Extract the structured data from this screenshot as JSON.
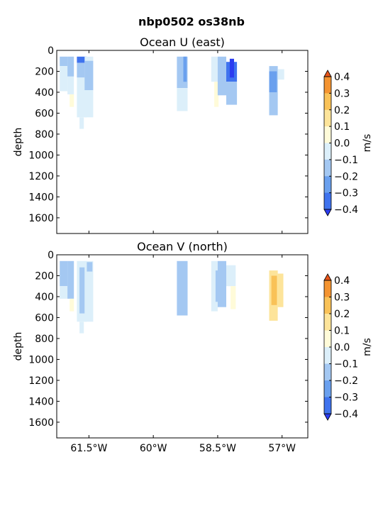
{
  "figure": {
    "title": "nbp0502 os38nb"
  },
  "colorscale": {
    "levels": [
      -0.4,
      -0.3,
      -0.2,
      -0.1,
      0.0,
      0.1,
      0.2,
      0.3,
      0.4
    ],
    "colors": [
      "#2b3cf0",
      "#3f73ee",
      "#6aa0ee",
      "#a4c8f2",
      "#dceffa",
      "#fffbd9",
      "#fde49a",
      "#f9c258",
      "#f49431",
      "#e8561a"
    ],
    "tick_labels": [
      "0.4",
      "0.3",
      "0.2",
      "0.1",
      "0.0",
      "−0.1",
      "−0.2",
      "−0.3",
      "−0.4"
    ],
    "unit_label": "m/s"
  },
  "chart_data": [
    {
      "type": "heatmap",
      "title": "Ocean U (east)",
      "ylabel": "depth",
      "xlabel": "",
      "xlim": [
        -62.25,
        -56.4
      ],
      "ylim": [
        1750,
        0
      ],
      "yticks": [
        0,
        200,
        400,
        600,
        800,
        1000,
        1200,
        1400,
        1600
      ],
      "ytick_labels": [
        "0",
        "200",
        "400",
        "600",
        "800",
        "1000",
        "1200",
        "1400",
        "1600"
      ],
      "xticks": [
        -61.5,
        -60.0,
        -58.5,
        -57.0
      ],
      "xtick_labels": [],
      "cells": [
        {
          "lon0": -62.18,
          "lon1": -62.0,
          "d0": 60,
          "d1": 150,
          "value": -0.12
        },
        {
          "lon0": -62.18,
          "lon1": -62.0,
          "d0": 150,
          "d1": 390,
          "value": -0.05
        },
        {
          "lon0": -62.0,
          "lon1": -61.85,
          "d0": 60,
          "d1": 250,
          "value": -0.15
        },
        {
          "lon0": -62.0,
          "lon1": -61.85,
          "d0": 250,
          "d1": 420,
          "value": -0.05
        },
        {
          "lon0": -61.95,
          "lon1": -61.85,
          "d0": 420,
          "d1": 540,
          "value": 0.03
        },
        {
          "lon0": -61.78,
          "lon1": -61.55,
          "d0": 60,
          "d1": 120,
          "value": -0.32
        },
        {
          "lon0": -61.78,
          "lon1": -61.55,
          "d0": 120,
          "d1": 260,
          "value": -0.18
        },
        {
          "lon0": -61.78,
          "lon1": -61.55,
          "d0": 260,
          "d1": 640,
          "value": -0.08
        },
        {
          "lon0": -61.6,
          "lon1": -61.4,
          "d0": 60,
          "d1": 640,
          "value": -0.09
        },
        {
          "lon0": -61.6,
          "lon1": -61.4,
          "d0": 100,
          "d1": 380,
          "value": -0.14
        },
        {
          "lon0": -61.72,
          "lon1": -61.62,
          "d0": 640,
          "d1": 750,
          "value": -0.06
        },
        {
          "lon0": -59.45,
          "lon1": -59.2,
          "d0": 60,
          "d1": 360,
          "value": -0.13
        },
        {
          "lon0": -59.45,
          "lon1": -59.2,
          "d0": 360,
          "d1": 580,
          "value": -0.08
        },
        {
          "lon0": -59.3,
          "lon1": -59.22,
          "d0": 60,
          "d1": 300,
          "value": -0.25
        },
        {
          "lon0": -58.65,
          "lon1": -58.5,
          "d0": 60,
          "d1": 300,
          "value": -0.05
        },
        {
          "lon0": -58.58,
          "lon1": -58.48,
          "d0": 300,
          "d1": 540,
          "value": 0.04
        },
        {
          "lon0": -58.5,
          "lon1": -58.3,
          "d0": 60,
          "d1": 430,
          "value": -0.15
        },
        {
          "lon0": -58.3,
          "lon1": -58.05,
          "d0": 110,
          "d1": 300,
          "value": -0.33
        },
        {
          "lon0": -58.22,
          "lon1": -58.12,
          "d0": 80,
          "d1": 260,
          "value": -0.42
        },
        {
          "lon0": -58.3,
          "lon1": -58.05,
          "d0": 300,
          "d1": 520,
          "value": -0.12
        },
        {
          "lon0": -57.3,
          "lon1": -57.1,
          "d0": 150,
          "d1": 620,
          "value": -0.14
        },
        {
          "lon0": -57.3,
          "lon1": -57.12,
          "d0": 200,
          "d1": 400,
          "value": -0.22
        },
        {
          "lon0": -57.1,
          "lon1": -56.95,
          "d0": 180,
          "d1": 280,
          "value": -0.04
        }
      ]
    },
    {
      "type": "heatmap",
      "title": "Ocean V (north)",
      "ylabel": "depth",
      "xlabel": "",
      "xlim": [
        -62.25,
        -56.4
      ],
      "ylim": [
        1750,
        0
      ],
      "yticks": [
        0,
        200,
        400,
        600,
        800,
        1000,
        1200,
        1400,
        1600
      ],
      "ytick_labels": [
        "0",
        "200",
        "400",
        "600",
        "800",
        "1000",
        "1200",
        "1400",
        "1600"
      ],
      "xticks": [
        -61.5,
        -60.0,
        -58.5,
        -57.0
      ],
      "xtick_labels": [
        "61.5°W",
        "60°W",
        "58.5°W",
        "57°W"
      ],
      "cells": [
        {
          "lon0": -62.18,
          "lon1": -62.0,
          "d0": 60,
          "d1": 300,
          "value": -0.14
        },
        {
          "lon0": -62.18,
          "lon1": -62.0,
          "d0": 300,
          "d1": 420,
          "value": -0.06
        },
        {
          "lon0": -62.0,
          "lon1": -61.85,
          "d0": 60,
          "d1": 420,
          "value": -0.12
        },
        {
          "lon0": -61.95,
          "lon1": -61.85,
          "d0": 420,
          "d1": 540,
          "value": 0.03
        },
        {
          "lon0": -61.78,
          "lon1": -61.55,
          "d0": 60,
          "d1": 640,
          "value": -0.09
        },
        {
          "lon0": -61.72,
          "lon1": -61.6,
          "d0": 120,
          "d1": 560,
          "value": -0.16
        },
        {
          "lon0": -61.6,
          "lon1": -61.4,
          "d0": 60,
          "d1": 640,
          "value": -0.07
        },
        {
          "lon0": -61.55,
          "lon1": -61.42,
          "d0": 70,
          "d1": 160,
          "value": -0.2
        },
        {
          "lon0": -61.72,
          "lon1": -61.62,
          "d0": 640,
          "d1": 750,
          "value": -0.06
        },
        {
          "lon0": -59.45,
          "lon1": -59.2,
          "d0": 60,
          "d1": 580,
          "value": -0.12
        },
        {
          "lon0": -59.35,
          "lon1": -59.22,
          "d0": 80,
          "d1": 400,
          "value": -0.2
        },
        {
          "lon0": -58.65,
          "lon1": -58.5,
          "d0": 60,
          "d1": 540,
          "value": -0.1
        },
        {
          "lon0": -58.55,
          "lon1": -58.45,
          "d0": 150,
          "d1": 450,
          "value": -0.18
        },
        {
          "lon0": -58.5,
          "lon1": -58.3,
          "d0": 60,
          "d1": 500,
          "value": -0.13
        },
        {
          "lon0": -58.3,
          "lon1": -58.08,
          "d0": 100,
          "d1": 300,
          "value": -0.08
        },
        {
          "lon0": -58.2,
          "lon1": -58.08,
          "d0": 300,
          "d1": 520,
          "value": 0.05
        },
        {
          "lon0": -57.3,
          "lon1": -57.1,
          "d0": 150,
          "d1": 630,
          "value": 0.18
        },
        {
          "lon0": -57.25,
          "lon1": -57.12,
          "d0": 200,
          "d1": 480,
          "value": 0.27
        },
        {
          "lon0": -57.1,
          "lon1": -56.97,
          "d0": 180,
          "d1": 500,
          "value": 0.12
        }
      ]
    }
  ]
}
